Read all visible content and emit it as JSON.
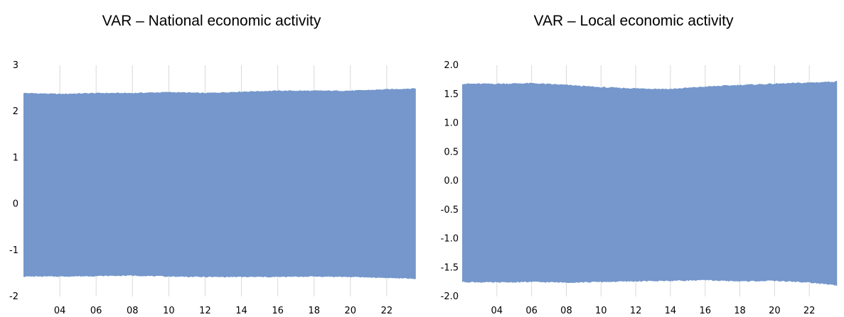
{
  "chart_data": [
    {
      "type": "area",
      "title": "VAR – National economic activity",
      "xlabel": "",
      "ylabel": "",
      "color": "#7597CB",
      "x_ticks": [
        "04",
        "06",
        "08",
        "10",
        "12",
        "14",
        "16",
        "18",
        "20",
        "22"
      ],
      "x_range": [
        2002,
        2024
      ],
      "y_ticks": [
        "-2",
        "-1",
        "0",
        "1",
        "2",
        "3"
      ],
      "ylim": [
        -2,
        3
      ],
      "grid": "vertical",
      "series": [
        {
          "x": [
            2002,
            2004,
            2006,
            2008,
            2010,
            2012,
            2014,
            2016,
            2018,
            2020,
            2022,
            2023.6
          ],
          "upper": [
            2.4,
            2.38,
            2.4,
            2.4,
            2.42,
            2.4,
            2.43,
            2.45,
            2.45,
            2.45,
            2.48,
            2.5
          ],
          "lower": [
            -1.57,
            -1.57,
            -1.56,
            -1.55,
            -1.57,
            -1.58,
            -1.58,
            -1.58,
            -1.57,
            -1.58,
            -1.6,
            -1.62
          ]
        }
      ]
    },
    {
      "type": "area",
      "title": "VAR – Local economic activity",
      "xlabel": "",
      "ylabel": "",
      "color": "#7597CB",
      "x_ticks": [
        "04",
        "06",
        "08",
        "10",
        "12",
        "14",
        "16",
        "18",
        "20",
        "22"
      ],
      "x_range": [
        2002,
        2024
      ],
      "y_ticks": [
        "-2.0",
        "-1.5",
        "-1.0",
        "-0.5",
        "0.0",
        "0.5",
        "1.0",
        "1.5",
        "2.0"
      ],
      "ylim": [
        -2.0,
        2.0
      ],
      "grid": "vertical",
      "series": [
        {
          "x": [
            2002,
            2004,
            2006,
            2008,
            2010,
            2012,
            2014,
            2016,
            2018,
            2020,
            2022,
            2023.6
          ],
          "upper": [
            1.68,
            1.68,
            1.69,
            1.66,
            1.62,
            1.6,
            1.59,
            1.63,
            1.66,
            1.68,
            1.7,
            1.72
          ],
          "lower": [
            -1.75,
            -1.76,
            -1.75,
            -1.76,
            -1.75,
            -1.74,
            -1.73,
            -1.72,
            -1.74,
            -1.73,
            -1.76,
            -1.81
          ]
        }
      ]
    }
  ]
}
